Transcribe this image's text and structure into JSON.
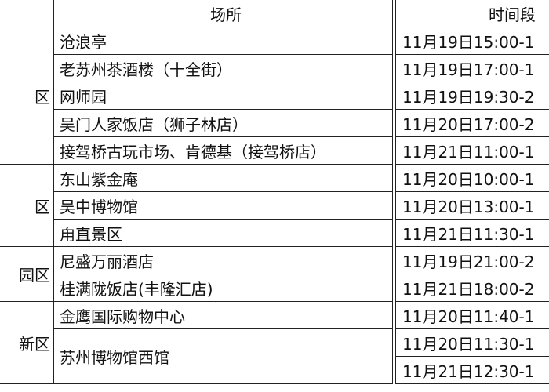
{
  "header": {
    "place": "场所",
    "time": "时间段"
  },
  "groups": [
    {
      "district": "区",
      "rows": [
        {
          "place": "沧浪亭",
          "times": [
            "11月19日15:00-1"
          ]
        },
        {
          "place": "老苏州茶酒楼（十全街）",
          "times": [
            "11月19日17:00-1"
          ]
        },
        {
          "place": "网师园",
          "times": [
            "11月19日19:30-2"
          ]
        },
        {
          "place": "吴门人家饭店（狮子林店）",
          "times": [
            "11月20日17:00-2"
          ]
        },
        {
          "place": "接驾桥古玩市场、肯德基（接驾桥店）",
          "times": [
            "11月21日11:00-1"
          ]
        }
      ]
    },
    {
      "district": "区",
      "rows": [
        {
          "place": "东山紫金庵",
          "times": [
            "11月20日10:00-1"
          ]
        },
        {
          "place": "吴中博物馆",
          "times": [
            "11月20日13:00-1"
          ]
        },
        {
          "place": "甪直景区",
          "times": [
            "11月21日11:30-1"
          ]
        }
      ]
    },
    {
      "district": "园区",
      "rows": [
        {
          "place": "尼盛万丽酒店",
          "times": [
            "11月19日21:00-2"
          ]
        },
        {
          "place": "桂满陇饭店(丰隆汇店)",
          "times": [
            "11月21日18:00-2"
          ]
        }
      ]
    },
    {
      "district": "新区",
      "rows": [
        {
          "place": "金鹰国际购物中心",
          "times": [
            "11月20日11:40-1"
          ]
        },
        {
          "place": "苏州博物馆西馆",
          "times": [
            "11月20日11:30-1",
            "11月21日12:30-1"
          ]
        }
      ]
    }
  ]
}
